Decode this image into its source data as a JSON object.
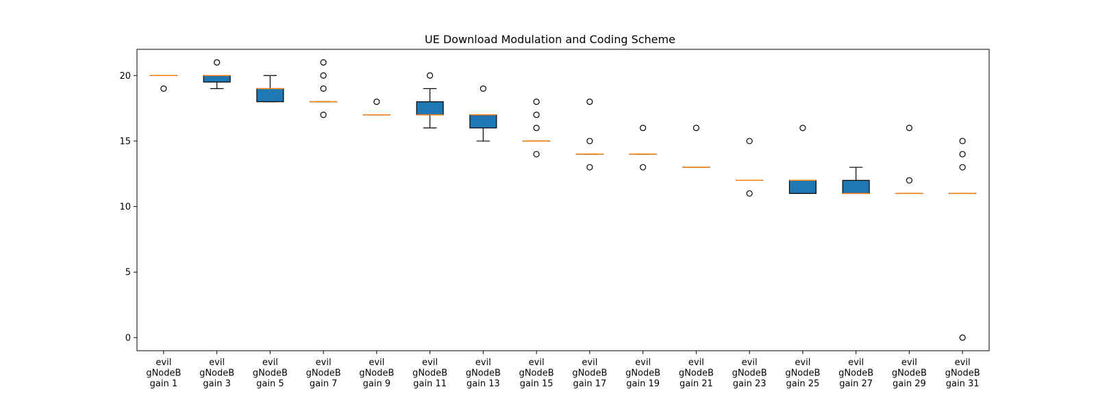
{
  "chart_data": {
    "type": "boxplot",
    "title": "UE Download Modulation and Coding Scheme",
    "xlabel": "",
    "ylabel": "",
    "ylim": [
      -1,
      22
    ],
    "yticks": [
      0,
      5,
      10,
      15,
      20
    ],
    "grid": false,
    "legend": "none",
    "colors": {
      "box_fill": "#1f77b4",
      "median": "#ff7f0e",
      "lines": "#000000",
      "axes": "#000000"
    },
    "categories": [
      [
        "evil",
        "gNodeB",
        "gain 1"
      ],
      [
        "evil",
        "gNodeB",
        "gain 3"
      ],
      [
        "evil",
        "gNodeB",
        "gain 5"
      ],
      [
        "evil",
        "gNodeB",
        "gain 7"
      ],
      [
        "evil",
        "gNodeB",
        "gain 9"
      ],
      [
        "evil",
        "gNodeB",
        "gain 11"
      ],
      [
        "evil",
        "gNodeB",
        "gain 13"
      ],
      [
        "evil",
        "gNodeB",
        "gain 15"
      ],
      [
        "evil",
        "gNodeB",
        "gain 17"
      ],
      [
        "evil",
        "gNodeB",
        "gain 19"
      ],
      [
        "evil",
        "gNodeB",
        "gain 21"
      ],
      [
        "evil",
        "gNodeB",
        "gain 23"
      ],
      [
        "evil",
        "gNodeB",
        "gain 25"
      ],
      [
        "evil",
        "gNodeB",
        "gain 27"
      ],
      [
        "evil",
        "gNodeB",
        "gain 29"
      ],
      [
        "evil",
        "gNodeB",
        "gain 31"
      ]
    ],
    "boxes": [
      {
        "whislo": 20,
        "q1": 20,
        "med": 20,
        "q3": 20,
        "whishi": 20,
        "fliers": [
          19
        ]
      },
      {
        "whislo": 19,
        "q1": 19.5,
        "med": 20,
        "q3": 20,
        "whishi": 20,
        "fliers": [
          21
        ]
      },
      {
        "whislo": 18,
        "q1": 18,
        "med": 19,
        "q3": 19,
        "whishi": 20,
        "fliers": []
      },
      {
        "whislo": 18,
        "q1": 18,
        "med": 18,
        "q3": 18,
        "whishi": 18,
        "fliers": [
          17,
          19,
          20,
          21
        ]
      },
      {
        "whislo": 17,
        "q1": 17,
        "med": 17,
        "q3": 17,
        "whishi": 17,
        "fliers": [
          18
        ]
      },
      {
        "whislo": 16,
        "q1": 17,
        "med": 17,
        "q3": 18,
        "whishi": 19,
        "fliers": [
          20
        ]
      },
      {
        "whislo": 15,
        "q1": 16,
        "med": 17,
        "q3": 17,
        "whishi": 17,
        "fliers": [
          19
        ]
      },
      {
        "whislo": 15,
        "q1": 15,
        "med": 15,
        "q3": 15,
        "whishi": 15,
        "fliers": [
          14,
          16,
          17,
          18
        ]
      },
      {
        "whislo": 14,
        "q1": 14,
        "med": 14,
        "q3": 14,
        "whishi": 14,
        "fliers": [
          13,
          15,
          18
        ]
      },
      {
        "whislo": 14,
        "q1": 14,
        "med": 14,
        "q3": 14,
        "whishi": 14,
        "fliers": [
          13,
          16
        ]
      },
      {
        "whislo": 13,
        "q1": 13,
        "med": 13,
        "q3": 13,
        "whishi": 13,
        "fliers": [
          16
        ]
      },
      {
        "whislo": 12,
        "q1": 12,
        "med": 12,
        "q3": 12,
        "whishi": 12,
        "fliers": [
          11,
          15
        ]
      },
      {
        "whislo": 11,
        "q1": 11,
        "med": 12,
        "q3": 12,
        "whishi": 12,
        "fliers": [
          16
        ]
      },
      {
        "whislo": 11,
        "q1": 11,
        "med": 11,
        "q3": 12,
        "whishi": 13,
        "fliers": []
      },
      {
        "whislo": 11,
        "q1": 11,
        "med": 11,
        "q3": 11,
        "whishi": 11,
        "fliers": [
          12,
          16
        ]
      },
      {
        "whislo": 11,
        "q1": 11,
        "med": 11,
        "q3": 11,
        "whishi": 11,
        "fliers": [
          0,
          13,
          14,
          15
        ]
      }
    ]
  }
}
